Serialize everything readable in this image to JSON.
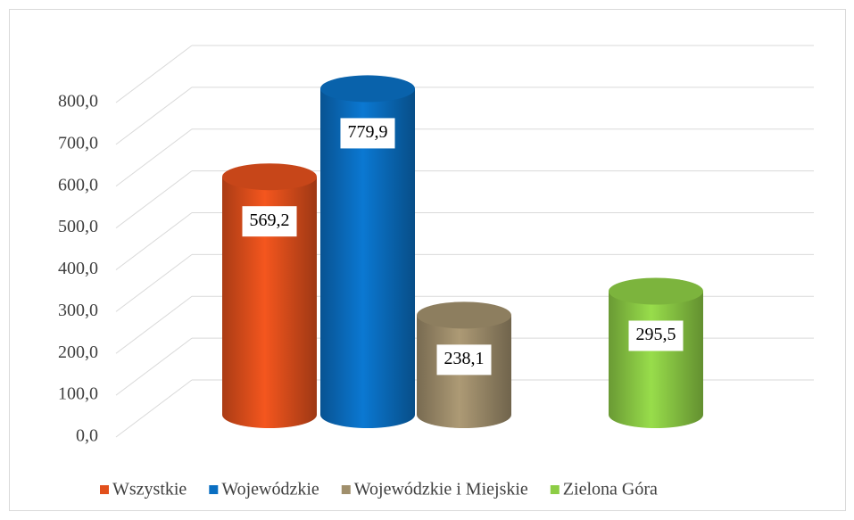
{
  "chart_data": {
    "type": "bar",
    "categories": [
      null
    ],
    "series": [
      {
        "name": "Wszystkie",
        "color": "#e2501c",
        "values": [
          569.2
        ],
        "value_labels": [
          "569,2"
        ]
      },
      {
        "name": "Wojewódzkie",
        "color": "#0a6fc2",
        "values": [
          779.9
        ],
        "value_labels": [
          "779,9"
        ]
      },
      {
        "name": "Wojewódzkie i Miejskie",
        "color": "#a08f6c",
        "values": [
          238.1
        ],
        "value_labels": [
          "238,1"
        ]
      },
      {
        "name": "Zielona Góra",
        "color": "#8dcd45",
        "values": [
          295.5
        ],
        "value_labels": [
          "295,5"
        ]
      }
    ],
    "ylim": [
      0,
      800
    ],
    "yticks": [
      {
        "value": 0,
        "label": "0,0"
      },
      {
        "value": 100,
        "label": "100,0"
      },
      {
        "value": 200,
        "label": "200,0"
      },
      {
        "value": 300,
        "label": "300,0"
      },
      {
        "value": 400,
        "label": "400,0"
      },
      {
        "value": 500,
        "label": "500,0"
      },
      {
        "value": 600,
        "label": "600,0"
      },
      {
        "value": 700,
        "label": "700,0"
      },
      {
        "value": 800,
        "label": "800,0"
      }
    ],
    "grid": true,
    "legend": "bottom"
  }
}
